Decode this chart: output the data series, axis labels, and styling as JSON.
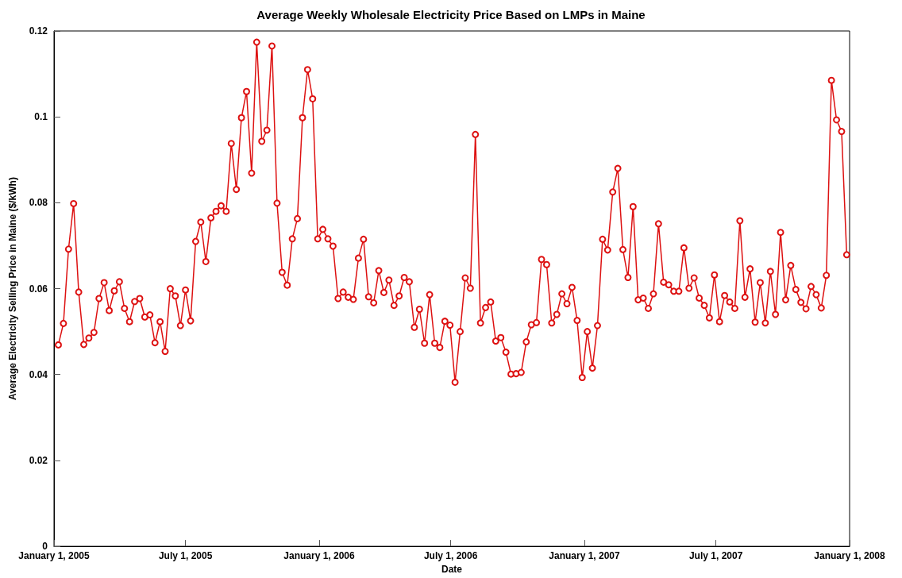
{
  "chart_data": {
    "type": "line",
    "title": "Average Weekly Wholesale Electricity Price Based on LMPs in Maine",
    "xlabel": "Date",
    "ylabel": "Average Electricity Selling Price in Maine ($/kWh)",
    "x": [
      "2005-01-07",
      "2005-01-14",
      "2005-01-21",
      "2005-01-28",
      "2005-02-04",
      "2005-02-11",
      "2005-02-18",
      "2005-02-25",
      "2005-03-04",
      "2005-03-11",
      "2005-03-18",
      "2005-03-25",
      "2005-04-01",
      "2005-04-08",
      "2005-04-15",
      "2005-04-22",
      "2005-04-29",
      "2005-05-06",
      "2005-05-13",
      "2005-05-20",
      "2005-05-27",
      "2005-06-03",
      "2005-06-10",
      "2005-06-17",
      "2005-06-24",
      "2005-07-01",
      "2005-07-08",
      "2005-07-15",
      "2005-07-22",
      "2005-07-29",
      "2005-08-05",
      "2005-08-12",
      "2005-08-19",
      "2005-08-26",
      "2005-09-02",
      "2005-09-09",
      "2005-09-16",
      "2005-09-23",
      "2005-09-30",
      "2005-10-07",
      "2005-10-14",
      "2005-10-21",
      "2005-10-28",
      "2005-11-04",
      "2005-11-11",
      "2005-11-18",
      "2005-11-25",
      "2005-12-02",
      "2005-12-09",
      "2005-12-16",
      "2005-12-23",
      "2005-12-30",
      "2006-01-06",
      "2006-01-13",
      "2006-01-20",
      "2006-01-27",
      "2006-02-03",
      "2006-02-10",
      "2006-02-17",
      "2006-02-24",
      "2006-03-03",
      "2006-03-10",
      "2006-03-17",
      "2006-03-24",
      "2006-03-31",
      "2006-04-07",
      "2006-04-14",
      "2006-04-21",
      "2006-04-28",
      "2006-05-05",
      "2006-05-12",
      "2006-05-19",
      "2006-05-26",
      "2006-06-02",
      "2006-06-09",
      "2006-06-16",
      "2006-06-23",
      "2006-06-30",
      "2006-07-07",
      "2006-07-14",
      "2006-07-21",
      "2006-07-28",
      "2006-08-04",
      "2006-08-11",
      "2006-08-18",
      "2006-08-25",
      "2006-09-01",
      "2006-09-08",
      "2006-09-15",
      "2006-09-22",
      "2006-09-29",
      "2006-10-06",
      "2006-10-13",
      "2006-10-20",
      "2006-10-27",
      "2006-11-03",
      "2006-11-10",
      "2006-11-17",
      "2006-11-24",
      "2006-12-01",
      "2006-12-08",
      "2006-12-15",
      "2006-12-22",
      "2006-12-29",
      "2007-01-05",
      "2007-01-12",
      "2007-01-19",
      "2007-01-26",
      "2007-02-02",
      "2007-02-09",
      "2007-02-16",
      "2007-02-23",
      "2007-03-02",
      "2007-03-09",
      "2007-03-16",
      "2007-03-23",
      "2007-03-30",
      "2007-04-06",
      "2007-04-13",
      "2007-04-20",
      "2007-04-27",
      "2007-05-04",
      "2007-05-11",
      "2007-05-18",
      "2007-05-25",
      "2007-06-01",
      "2007-06-08",
      "2007-06-15",
      "2007-06-22",
      "2007-06-29",
      "2007-07-06",
      "2007-07-13",
      "2007-07-20",
      "2007-07-27",
      "2007-08-03",
      "2007-08-10",
      "2007-08-17",
      "2007-08-24",
      "2007-08-31",
      "2007-09-07",
      "2007-09-14",
      "2007-09-21",
      "2007-09-28",
      "2007-10-05",
      "2007-10-12",
      "2007-10-19",
      "2007-10-26",
      "2007-11-02",
      "2007-11-09",
      "2007-11-16",
      "2007-11-23",
      "2007-11-30",
      "2007-12-07",
      "2007-12-14",
      "2007-12-21",
      "2007-12-28"
    ],
    "series": [
      {
        "color": "#dd1111",
        "values": [
          0.0469,
          0.0519,
          0.0692,
          0.0798,
          0.0592,
          0.047,
          0.0485,
          0.0498,
          0.0577,
          0.0614,
          0.0549,
          0.0595,
          0.0616,
          0.0554,
          0.0523,
          0.057,
          0.0577,
          0.0534,
          0.0539,
          0.0474,
          0.0523,
          0.0454,
          0.06,
          0.0583,
          0.0514,
          0.0597,
          0.0525,
          0.071,
          0.0755,
          0.0663,
          0.0765,
          0.078,
          0.0793,
          0.078,
          0.0938,
          0.0831,
          0.0998,
          0.1059,
          0.0869,
          0.1174,
          0.0943,
          0.0969,
          0.1165,
          0.0799,
          0.0638,
          0.0608,
          0.0716,
          0.0763,
          0.0998,
          0.111,
          0.1042,
          0.0716,
          0.0738,
          0.0716,
          0.0699,
          0.0577,
          0.0592,
          0.058,
          0.0575,
          0.0671,
          0.0715,
          0.0581,
          0.0567,
          0.0642,
          0.0591,
          0.062,
          0.0561,
          0.0583,
          0.0626,
          0.0616,
          0.051,
          0.0552,
          0.0473,
          0.0586,
          0.0473,
          0.0463,
          0.0524,
          0.0515,
          0.0382,
          0.05,
          0.0625,
          0.0601,
          0.0959,
          0.052,
          0.0556,
          0.0569,
          0.0478,
          0.0486,
          0.0452,
          0.0401,
          0.0402,
          0.0405,
          0.0476,
          0.0516,
          0.0521,
          0.0668,
          0.0656,
          0.052,
          0.054,
          0.0588,
          0.0565,
          0.0603,
          0.0526,
          0.0393,
          0.05,
          0.0415,
          0.0514,
          0.0715,
          0.069,
          0.0825,
          0.088,
          0.0691,
          0.0626,
          0.0791,
          0.0574,
          0.0578,
          0.0554,
          0.0588,
          0.0751,
          0.0615,
          0.0609,
          0.0594,
          0.0594,
          0.0695,
          0.0601,
          0.0625,
          0.0578,
          0.0561,
          0.0532,
          0.0632,
          0.0523,
          0.0584,
          0.0569,
          0.0554,
          0.0758,
          0.058,
          0.0646,
          0.0522,
          0.0614,
          0.052,
          0.064,
          0.054,
          0.0731,
          0.0574,
          0.0654,
          0.0598,
          0.0568,
          0.0553,
          0.0605,
          0.0586,
          0.0555,
          0.0631,
          0.1085,
          0.0993,
          0.0966,
          0.0679
        ]
      }
    ],
    "xlim": [
      "2005-01-01",
      "2008-01-01"
    ],
    "xticks": [
      {
        "value": "2005-01-01",
        "label": "January 1, 2005"
      },
      {
        "value": "2005-07-01",
        "label": "July 1, 2005"
      },
      {
        "value": "2006-01-01",
        "label": "January 1, 2006"
      },
      {
        "value": "2006-07-01",
        "label": "July 1, 2006"
      },
      {
        "value": "2007-01-01",
        "label": "January 1, 2007"
      },
      {
        "value": "2007-07-01",
        "label": "July 1, 2007"
      },
      {
        "value": "2008-01-01",
        "label": "January 1, 2008"
      }
    ],
    "ylim": [
      0,
      0.12
    ],
    "yticks": [
      0,
      0.02,
      0.04,
      0.06,
      0.08,
      0.1,
      0.12
    ],
    "grid": false,
    "marker": "circle",
    "line_style": "solid"
  }
}
